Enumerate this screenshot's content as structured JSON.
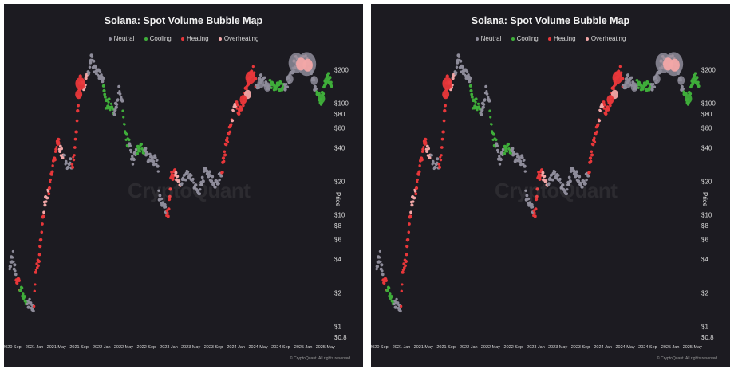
{
  "chart_data": [
    {
      "type": "scatter",
      "title": "Solana: Spot Volume Bubble Map",
      "ylabel": "Price",
      "yscale": "log",
      "ylim": [
        0.8,
        280
      ],
      "yticks": [
        "$200",
        "$100",
        "$80",
        "$60",
        "$40",
        "$20",
        "$10",
        "$8",
        "$6",
        "$4",
        "$2",
        "$1",
        "$0.8"
      ],
      "ytick_values": [
        200,
        100,
        80,
        60,
        40,
        20,
        10,
        8,
        6,
        4,
        2,
        1,
        0.8
      ],
      "xlim": [
        "2020-08-15",
        "2025-06-10"
      ],
      "xticks": [
        "2020 Sep",
        "2021 Jan",
        "2021 May",
        "2021 Sep",
        "2022 Jan",
        "2022 May",
        "2022 Sep",
        "2023 Jan",
        "2023 May",
        "2023 Sep",
        "2024 Jan",
        "2024 May",
        "2024 Sep",
        "2025 Jan",
        "2025 May"
      ],
      "xtick_dates": [
        "2020-09-01",
        "2021-01-01",
        "2021-05-01",
        "2021-09-01",
        "2022-01-01",
        "2022-05-01",
        "2022-09-01",
        "2023-01-01",
        "2023-05-01",
        "2023-09-01",
        "2024-01-01",
        "2024-05-01",
        "2024-09-01",
        "2025-01-01",
        "2025-05-01"
      ],
      "legend": [
        "Neutral",
        "Cooling",
        "Heating",
        "Overheating"
      ],
      "legend_position": "top-center",
      "colors": {
        "Neutral": "#8e8c9a",
        "Cooling": "#3fae3a",
        "Heating": "#e8373a",
        "Overheating": "#f2a7a7",
        "background": "#1c1b21",
        "text": "#d9d9d9"
      },
      "watermark": "CryptoQuant",
      "credit": "© CryptoQuant. All rights reserved",
      "price_path": [
        [
          "2020-08-20",
          3.2
        ],
        [
          "2020-09-05",
          4.5
        ],
        [
          "2020-09-20",
          2.9
        ],
        [
          "2020-10-10",
          2.4
        ],
        [
          "2020-11-01",
          1.9
        ],
        [
          "2020-11-20",
          1.6
        ],
        [
          "2020-12-10",
          1.6
        ],
        [
          "2020-12-28",
          1.4
        ],
        [
          "2021-01-10",
          3.2
        ],
        [
          "2021-01-25",
          4.0
        ],
        [
          "2021-02-10",
          7.0
        ],
        [
          "2021-02-25",
          12.0
        ],
        [
          "2021-03-10",
          15.0
        ],
        [
          "2021-03-25",
          17.0
        ],
        [
          "2021-04-10",
          28.0
        ],
        [
          "2021-04-25",
          35.0
        ],
        [
          "2021-05-10",
          46.0
        ],
        [
          "2021-05-25",
          38.0
        ],
        [
          "2021-06-10",
          33.0
        ],
        [
          "2021-06-25",
          28.0
        ],
        [
          "2021-07-10",
          30.0
        ],
        [
          "2021-07-25",
          27.0
        ],
        [
          "2021-08-10",
          40.0
        ],
        [
          "2021-08-25",
          85.0
        ],
        [
          "2021-09-08",
          160.0
        ],
        [
          "2021-09-20",
          140.0
        ],
        [
          "2021-10-10",
          160.0
        ],
        [
          "2021-11-06",
          250.0
        ],
        [
          "2021-11-25",
          205.0
        ],
        [
          "2021-12-15",
          185.0
        ],
        [
          "2022-01-05",
          170.0
        ],
        [
          "2022-01-25",
          95.0
        ],
        [
          "2022-02-10",
          100.0
        ],
        [
          "2022-02-28",
          90.0
        ],
        [
          "2022-03-15",
          85.0
        ],
        [
          "2022-04-05",
          130.0
        ],
        [
          "2022-04-25",
          100.0
        ],
        [
          "2022-05-12",
          50.0
        ],
        [
          "2022-06-01",
          42.0
        ],
        [
          "2022-06-18",
          30.0
        ],
        [
          "2022-07-10",
          36.0
        ],
        [
          "2022-08-01",
          42.0
        ],
        [
          "2022-08-20",
          38.0
        ],
        [
          "2022-09-10",
          33.0
        ],
        [
          "2022-10-10",
          31.0
        ],
        [
          "2022-11-01",
          31.0
        ],
        [
          "2022-11-10",
          15.0
        ],
        [
          "2022-12-01",
          13.0
        ],
        [
          "2022-12-28",
          9.8
        ],
        [
          "2023-01-15",
          22.0
        ],
        [
          "2023-02-05",
          24.0
        ],
        [
          "2023-03-10",
          19.0
        ],
        [
          "2023-04-15",
          24.0
        ],
        [
          "2023-05-15",
          20.0
        ],
        [
          "2023-06-15",
          15.0
        ],
        [
          "2023-07-15",
          24.0
        ],
        [
          "2023-08-15",
          22.0
        ],
        [
          "2023-09-10",
          19.0
        ],
        [
          "2023-10-15",
          23.0
        ],
        [
          "2023-11-05",
          40.0
        ],
        [
          "2023-12-01",
          60.0
        ],
        [
          "2023-12-25",
          105.0
        ],
        [
          "2024-01-20",
          85.0
        ],
        [
          "2024-02-15",
          110.0
        ],
        [
          "2024-03-15",
          175.0
        ],
        [
          "2024-04-05",
          195.0
        ],
        [
          "2024-04-25",
          140.0
        ],
        [
          "2024-05-20",
          175.0
        ],
        [
          "2024-06-15",
          145.0
        ],
        [
          "2024-07-10",
          150.0
        ],
        [
          "2024-08-05",
          130.0
        ],
        [
          "2024-08-20",
          145.0
        ],
        [
          "2024-09-10",
          135.0
        ],
        [
          "2024-10-15",
          160.0
        ],
        [
          "2024-11-20",
          240.0
        ],
        [
          "2024-12-15",
          215.0
        ],
        [
          "2025-01-19",
          260.0
        ],
        [
          "2025-02-10",
          200.0
        ],
        [
          "2025-03-05",
          140.0
        ],
        [
          "2025-04-08",
          105.0
        ],
        [
          "2025-04-25",
          145.0
        ],
        [
          "2025-05-15",
          175.0
        ],
        [
          "2025-06-05",
          150.0
        ]
      ],
      "regimes": [
        [
          "2020-08-20",
          "2020-09-25",
          "Neutral"
        ],
        [
          "2020-09-25",
          "2020-10-15",
          "Heating"
        ],
        [
          "2020-10-15",
          "2020-11-20",
          "Cooling"
        ],
        [
          "2020-11-20",
          "2020-12-28",
          "Neutral"
        ],
        [
          "2020-12-28",
          "2021-02-20",
          "Heating"
        ],
        [
          "2021-02-20",
          "2021-03-20",
          "Overheating"
        ],
        [
          "2021-03-20",
          "2021-05-15",
          "Heating"
        ],
        [
          "2021-05-15",
          "2021-06-10",
          "Overheating"
        ],
        [
          "2021-06-10",
          "2021-07-25",
          "Neutral"
        ],
        [
          "2021-07-25",
          "2021-09-20",
          "Heating"
        ],
        [
          "2021-09-20",
          "2021-10-20",
          "Overheating"
        ],
        [
          "2021-10-20",
          "2022-01-10",
          "Neutral"
        ],
        [
          "2022-01-10",
          "2022-03-10",
          "Cooling"
        ],
        [
          "2022-03-10",
          "2022-04-25",
          "Neutral"
        ],
        [
          "2022-04-25",
          "2022-06-01",
          "Cooling"
        ],
        [
          "2022-06-01",
          "2022-07-10",
          "Neutral"
        ],
        [
          "2022-07-10",
          "2022-08-20",
          "Cooling"
        ],
        [
          "2022-08-20",
          "2022-11-05",
          "Neutral"
        ],
        [
          "2022-11-05",
          "2022-12-20",
          "Neutral"
        ],
        [
          "2022-12-20",
          "2023-02-05",
          "Heating"
        ],
        [
          "2023-02-05",
          "2023-03-10",
          "Overheating"
        ],
        [
          "2023-03-10",
          "2023-10-15",
          "Neutral"
        ],
        [
          "2023-10-15",
          "2023-12-10",
          "Heating"
        ],
        [
          "2023-12-10",
          "2024-01-05",
          "Overheating"
        ],
        [
          "2024-01-05",
          "2024-03-01",
          "Heating"
        ],
        [
          "2024-03-01",
          "2024-04-20",
          "Heating"
        ],
        [
          "2024-04-20",
          "2024-05-25",
          "Neutral"
        ],
        [
          "2024-05-25",
          "2024-07-01",
          "Neutral"
        ],
        [
          "2024-07-01",
          "2024-09-20",
          "Cooling"
        ],
        [
          "2024-09-20",
          "2024-11-10",
          "Neutral"
        ],
        [
          "2024-11-10",
          "2025-01-25",
          "Overheating"
        ],
        [
          "2025-01-25",
          "2025-03-15",
          "Neutral"
        ],
        [
          "2025-03-15",
          "2025-04-20",
          "Cooling"
        ],
        [
          "2025-04-20",
          "2025-06-05",
          "Cooling"
        ]
      ],
      "bubbles": [
        {
          "date": "2021-09-08",
          "price": 150,
          "size": 3,
          "regime": "Heating"
        },
        {
          "date": "2021-08-30",
          "price": 120,
          "size": 2,
          "regime": "Heating"
        },
        {
          "date": "2021-05-10",
          "price": 44,
          "size": 1,
          "regime": "Heating"
        },
        {
          "date": "2023-01-20",
          "price": 22,
          "size": 1,
          "regime": "Heating"
        },
        {
          "date": "2024-03-20",
          "price": 170,
          "size": 3,
          "regime": "Heating"
        },
        {
          "date": "2024-03-05",
          "price": 120,
          "size": 2,
          "regime": "Overheating"
        },
        {
          "date": "2024-02-10",
          "price": 108,
          "size": 2,
          "regime": "Heating"
        },
        {
          "date": "2024-05-15",
          "price": 150,
          "size": 2,
          "regime": "Neutral"
        },
        {
          "date": "2024-06-20",
          "price": 140,
          "size": 2,
          "regime": "Neutral"
        },
        {
          "date": "2024-10-20",
          "price": 165,
          "size": 2,
          "regime": "Neutral"
        },
        {
          "date": "2024-11-25",
          "price": 230,
          "size": 5,
          "regime": "Neutral"
        },
        {
          "date": "2025-01-20",
          "price": 225,
          "size": 6,
          "regime": "Neutral"
        },
        {
          "date": "2024-12-20",
          "price": 225,
          "size": 3,
          "regime": "Overheating"
        },
        {
          "date": "2025-01-25",
          "price": 220,
          "size": 3,
          "regime": "Overheating"
        },
        {
          "date": "2025-03-01",
          "price": 160,
          "size": 2,
          "regime": "Neutral"
        },
        {
          "date": "2025-04-10",
          "price": 110,
          "size": 2,
          "regime": "Cooling"
        },
        {
          "date": "2025-05-05",
          "price": 160,
          "size": 1,
          "regime": "Cooling"
        }
      ]
    },
    {
      "type": "scatter",
      "title": "Solana: Spot Volume Bubble Map",
      "ylabel": "Price",
      "yscale": "log",
      "ylim": [
        0.8,
        280
      ],
      "yticks": [
        "$200",
        "$100",
        "$80",
        "$60",
        "$40",
        "$20",
        "$10",
        "$8",
        "$6",
        "$4",
        "$2",
        "$1",
        "$0.8"
      ],
      "ytick_values": [
        200,
        100,
        80,
        60,
        40,
        20,
        10,
        8,
        6,
        4,
        2,
        1,
        0.8
      ],
      "xlim": [
        "2020-08-15",
        "2025-06-10"
      ],
      "xticks": [
        "2020 Sep",
        "2021 Jan",
        "2021 May",
        "2021 Sep",
        "2022 Jan",
        "2022 May",
        "2022 Sep",
        "2023 Jan",
        "2023 May",
        "2023 Sep",
        "2024 Jan",
        "2024 May",
        "2024 Sep",
        "2025 Jan",
        "2025 May"
      ],
      "xtick_dates": [
        "2020-09-01",
        "2021-01-01",
        "2021-05-01",
        "2021-09-01",
        "2022-01-01",
        "2022-05-01",
        "2022-09-01",
        "2023-01-01",
        "2023-05-01",
        "2023-09-01",
        "2024-01-01",
        "2024-05-01",
        "2024-09-01",
        "2025-01-01",
        "2025-05-01"
      ],
      "legend": [
        "Neutral",
        "Cooling",
        "Heating",
        "Overheating"
      ],
      "legend_position": "top-center",
      "colors": {
        "Neutral": "#8e8c9a",
        "Cooling": "#3fae3a",
        "Heating": "#e8373a",
        "Overheating": "#f2a7a7",
        "background": "#1c1b21",
        "text": "#d9d9d9"
      },
      "watermark": "CryptoQuant",
      "credit": "© CryptoQuant. All rights reserved",
      "same_as_first": true
    }
  ]
}
